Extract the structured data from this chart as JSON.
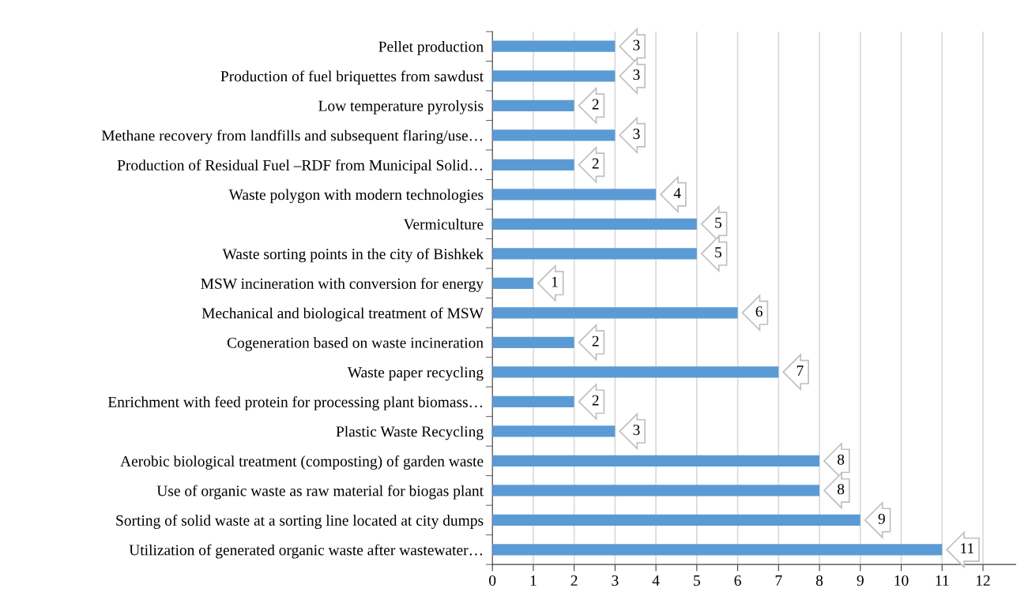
{
  "chart_data": {
    "type": "bar",
    "orientation": "horizontal",
    "categories": [
      "Pellet production",
      "Production of fuel briquettes from sawdust",
      "Low temperature pyrolysis",
      "Methane recovery from landfills and subsequent flaring/use…",
      "Production of Residual Fuel –RDF from Municipal Solid…",
      "Waste polygon with modern technologies",
      "Vermiculture",
      "Waste sorting points in the city of Bishkek",
      "MSW incineration with conversion for energy",
      "Mechanical and biological treatment of MSW",
      "Cogeneration based on waste incineration",
      "Waste paper recycling",
      "Enrichment with feed protein for processing plant biomass…",
      "Plastic Waste Recycling",
      "Aerobic biological treatment (composting) of garden waste",
      "Use of organic waste as raw material for biogas plant",
      "Sorting of solid waste at a sorting line located at city dumps",
      "Utilization of generated organic waste after wastewater…"
    ],
    "values": [
      3,
      3,
      2,
      3,
      2,
      4,
      5,
      5,
      1,
      6,
      2,
      7,
      2,
      3,
      8,
      8,
      9,
      11
    ],
    "color": "#5b9bd5",
    "xlim": [
      0,
      12.8
    ],
    "xticks": [
      0,
      1,
      2,
      3,
      4,
      5,
      6,
      7,
      8,
      9,
      10,
      11,
      12
    ],
    "grid": "x",
    "legend": false,
    "data_labels": true
  }
}
